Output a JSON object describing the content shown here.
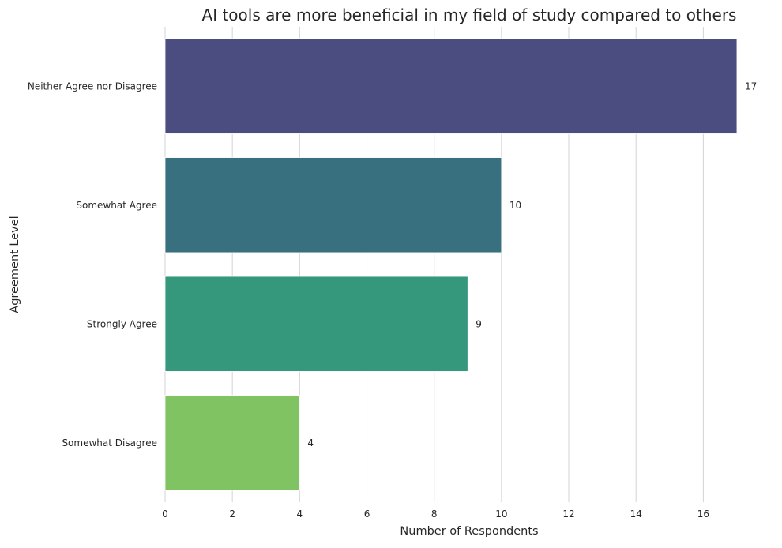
{
  "chart_data": {
    "type": "bar",
    "orientation": "horizontal",
    "title": "AI tools are more beneficial in my field of study compared to others",
    "xlabel": "Number of Respondents",
    "ylabel": "Agreement Level",
    "categories": [
      "Neither Agree nor Disagree",
      "Somewhat Agree",
      "Strongly Agree",
      "Somewhat Disagree"
    ],
    "values": [
      17,
      10,
      9,
      4
    ],
    "value_labels": [
      "17",
      "10",
      "9",
      "4"
    ],
    "colors": [
      "#4b4c80",
      "#38707f",
      "#35977b",
      "#80c362"
    ],
    "xlim": [
      0,
      17.4
    ],
    "xticks": [
      0,
      2,
      4,
      6,
      8,
      10,
      12,
      14,
      16
    ],
    "xtick_labels": [
      "0",
      "2",
      "4",
      "6",
      "8",
      "10",
      "12",
      "14",
      "16"
    ],
    "grid": "vertical",
    "legend": "none"
  }
}
